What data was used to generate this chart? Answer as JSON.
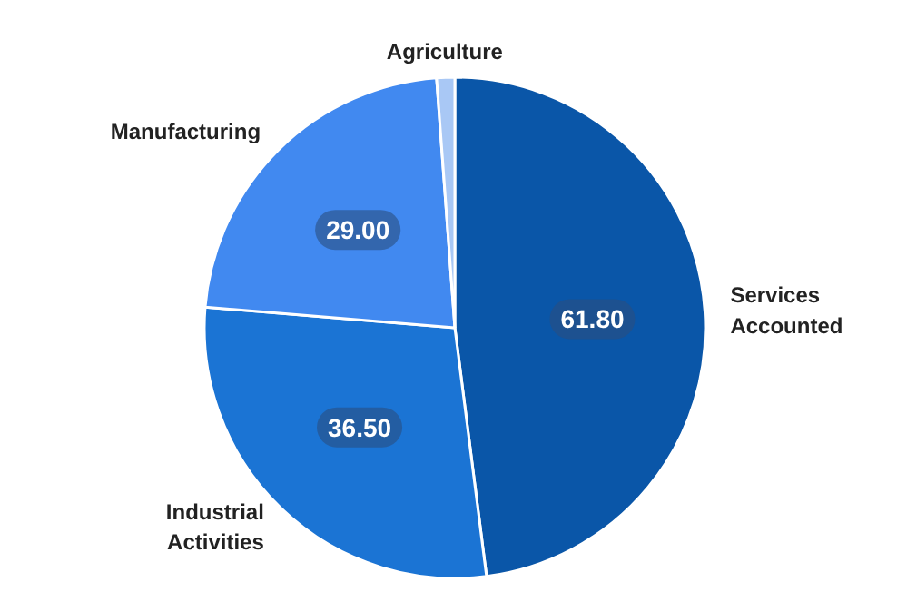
{
  "chart_data": {
    "type": "pie",
    "categories": [
      "Services Accounted",
      "Industrial Activities",
      "Manufacturing",
      "Agriculture"
    ],
    "values": [
      61.8,
      36.5,
      29.0,
      1.5
    ],
    "colors": [
      "#0a56a8",
      "#1b74d4",
      "#4189f0",
      "#a9c8f5"
    ],
    "value_labels": [
      "61.80",
      "36.50",
      "29.00",
      null
    ]
  }
}
